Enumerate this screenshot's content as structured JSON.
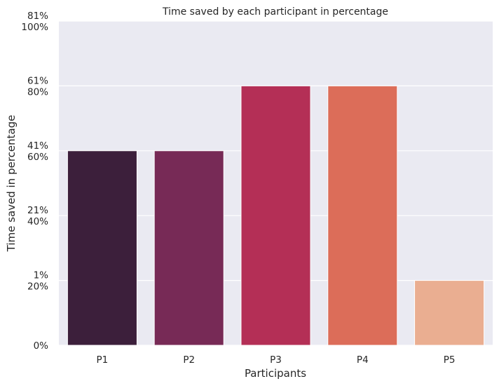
{
  "chart_data": {
    "type": "bar",
    "title": "Time saved by each participant in percentage",
    "xlabel": "Participants",
    "ylabel": "Time saved in percentage",
    "categories": [
      "P1",
      "P2",
      "P3",
      "P4",
      "P5"
    ],
    "values": [
      60,
      60,
      80,
      80,
      20
    ],
    "ylim": [
      0,
      100
    ],
    "y_ticks": [
      {
        "value": 0,
        "labels": [
          "0%"
        ]
      },
      {
        "value": 20,
        "labels": [
          "1%",
          "20%"
        ]
      },
      {
        "value": 40,
        "labels": [
          "21%",
          "40%"
        ]
      },
      {
        "value": 60,
        "labels": [
          "41%",
          "60%"
        ]
      },
      {
        "value": 80,
        "labels": [
          "61%",
          "80%"
        ]
      },
      {
        "value": 100,
        "labels": [
          "81%",
          "100%"
        ]
      }
    ],
    "colors": [
      "#3c1f3b",
      "#772a56",
      "#b42f56",
      "#dc6d59",
      "#eaae91"
    ],
    "plot_background": "#eaeaf2",
    "grid": true
  }
}
